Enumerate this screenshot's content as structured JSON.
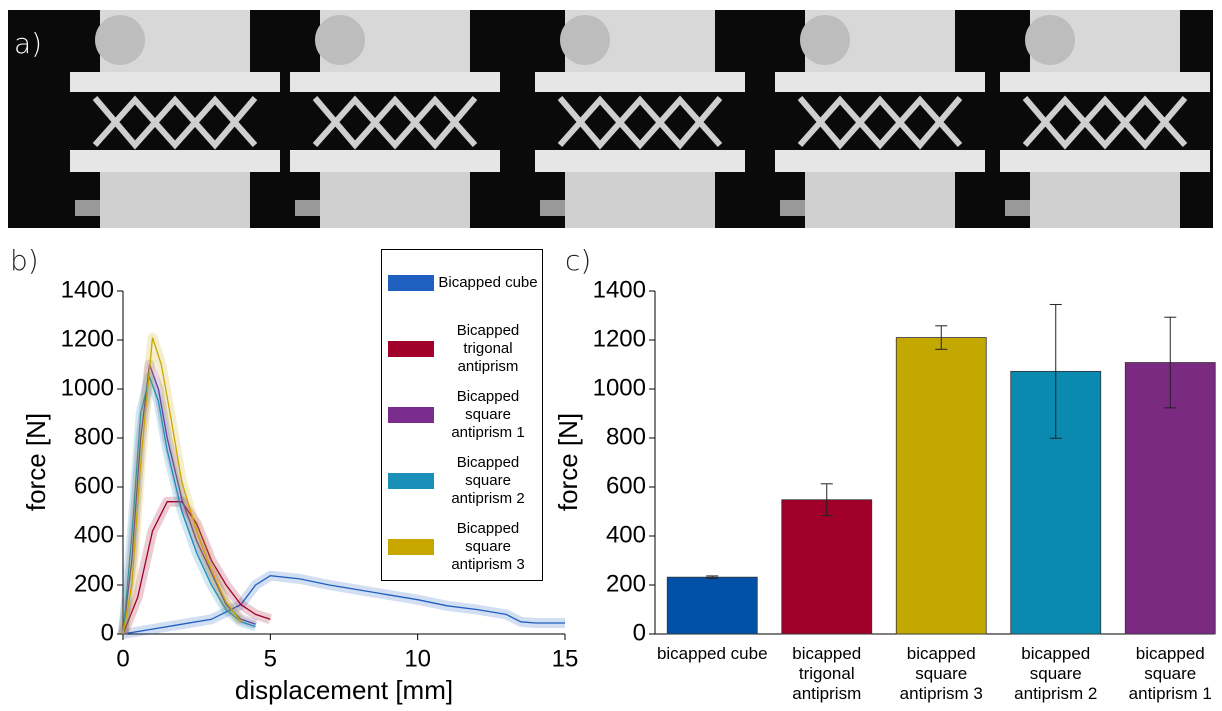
{
  "photo": {
    "label": "a)"
  },
  "chart_data": [
    {
      "type": "line",
      "panel_label": "b)",
      "xlabel": "displacement [mm]",
      "ylabel": "force [N]",
      "xlim": [
        0,
        15
      ],
      "ylim": [
        0,
        1400
      ],
      "xticks": [
        0,
        5,
        10,
        15
      ],
      "yticks": [
        0,
        200,
        400,
        600,
        800,
        1000,
        1200,
        1400
      ],
      "legend": "upper right",
      "series": [
        {
          "name": "Bicapped cube",
          "color": "#1f5fbf",
          "x": [
            0,
            1,
            2,
            3,
            4,
            4.5,
            5,
            6,
            7,
            8,
            9,
            10,
            11,
            12,
            13,
            13.5,
            14,
            15
          ],
          "values": [
            0,
            20,
            40,
            60,
            120,
            200,
            238,
            225,
            200,
            180,
            160,
            140,
            115,
            100,
            80,
            50,
            45,
            45
          ]
        },
        {
          "name": "Bicapped trigonal antiprism",
          "color": "#a0002a",
          "x": [
            0,
            0.5,
            1,
            1.5,
            2,
            2.5,
            3,
            3.5,
            4,
            4.5,
            5
          ],
          "values": [
            0,
            150,
            420,
            540,
            540,
            450,
            300,
            200,
            120,
            80,
            60
          ]
        },
        {
          "name": "Bicapped square antiprism 1",
          "color": "#7b2d8e",
          "x": [
            0,
            0.3,
            0.6,
            0.9,
            1.2,
            1.5,
            2,
            2.5,
            3,
            3.5,
            4,
            4.5
          ],
          "values": [
            0,
            300,
            800,
            1100,
            1000,
            800,
            550,
            380,
            250,
            120,
            60,
            40
          ]
        },
        {
          "name": "Bicapped square antiprism 2",
          "color": "#1a90b8",
          "x": [
            0,
            0.3,
            0.6,
            0.9,
            1.2,
            1.5,
            2,
            2.5,
            3,
            3.5,
            4,
            4.5
          ],
          "values": [
            0,
            400,
            900,
            1050,
            950,
            750,
            500,
            330,
            200,
            100,
            50,
            30
          ]
        },
        {
          "name": "Bicapped square antiprism 3",
          "color": "#c8a800",
          "x": [
            0,
            0.3,
            0.6,
            1,
            1.3,
            1.6,
            2,
            2.5,
            3,
            3.5,
            4
          ],
          "values": [
            0,
            200,
            700,
            1210,
            1100,
            900,
            620,
            420,
            260,
            130,
            50
          ]
        }
      ]
    },
    {
      "type": "bar",
      "panel_label": "c)",
      "ylabel": "force [N]",
      "ylim": [
        0,
        1400
      ],
      "yticks": [
        0,
        200,
        400,
        600,
        800,
        1000,
        1200,
        1400
      ],
      "categories": [
        "bicapped cube",
        "bicapped trigonal antiprism",
        "bicapped square antiprism 3",
        "bicapped square antiprism 2",
        "bicapped square antiprism 1"
      ],
      "values": [
        232,
        548,
        1210,
        1072,
        1108
      ],
      "errors": [
        5,
        65,
        48,
        273,
        185
      ],
      "colors": [
        "#0050a8",
        "#a0002a",
        "#c2a800",
        "#0a8ab0",
        "#7b2a82"
      ]
    }
  ]
}
